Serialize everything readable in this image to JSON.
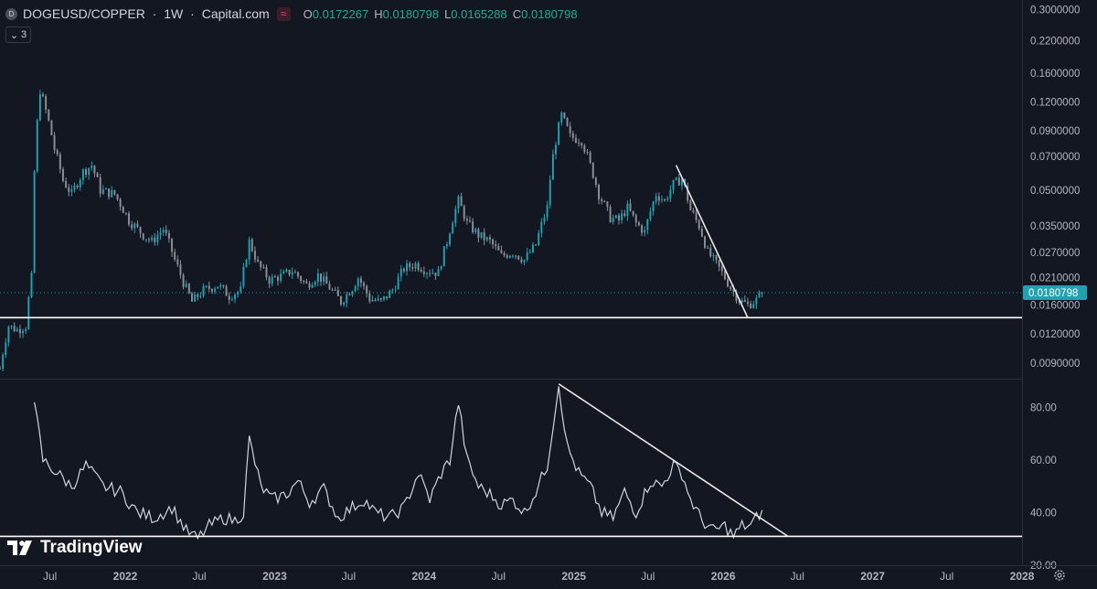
{
  "legend": {
    "symbol_icon": "D",
    "symbol": "DOGEUSD/COPPER",
    "interval": "1W",
    "source": "Capital.com",
    "indicator_icon": "wave-icon",
    "open_label": "O",
    "open": "0.0172267",
    "high_label": "H",
    "high": "0.0180798",
    "low_label": "L",
    "low": "0.0165288",
    "close_label": "C",
    "close": "0.0180798",
    "collapse_count": "3"
  },
  "logo_text": "TradingView",
  "colors": {
    "background": "#131722",
    "up": "#22a1b0",
    "down": "#8c8f99",
    "line": "#d1d4dc",
    "price_tag": "#22a1b0",
    "grid_text": "#b2b5be"
  },
  "chart_data": [
    {
      "type": "candlestick",
      "scale": "log",
      "ylim": [
        0.0077,
        0.33
      ],
      "y_ticks": [
        "0.3000000",
        "0.2200000",
        "0.1600000",
        "0.1200000",
        "0.0900000",
        "0.0700000",
        "0.0500000",
        "0.0350000",
        "0.0270000",
        "0.0210000",
        "0.0160000",
        "0.0120000",
        "0.0090000"
      ],
      "last_price_label": "0.0180798",
      "keypoints": [
        [
          "2021-03-01",
          0.0085
        ],
        [
          "2021-03-22",
          0.013
        ],
        [
          "2021-04-12",
          0.0125
        ],
        [
          "2021-05-03",
          0.013
        ],
        [
          "2021-05-17",
          0.021
        ],
        [
          "2021-05-24",
          0.06
        ],
        [
          "2021-06-07",
          0.135
        ],
        [
          "2021-06-21",
          0.11
        ],
        [
          "2021-07-12",
          0.075
        ],
        [
          "2021-08-02",
          0.055
        ],
        [
          "2021-08-23",
          0.048
        ],
        [
          "2021-09-20",
          0.06
        ],
        [
          "2021-10-11",
          0.064
        ],
        [
          "2021-11-01",
          0.05
        ],
        [
          "2021-12-06",
          0.048
        ],
        [
          "2022-01-10",
          0.037
        ],
        [
          "2022-02-14",
          0.032
        ],
        [
          "2022-03-07",
          0.03
        ],
        [
          "2022-04-04",
          0.034
        ],
        [
          "2022-05-02",
          0.025
        ],
        [
          "2022-05-23",
          0.02
        ],
        [
          "2022-06-13",
          0.0165
        ],
        [
          "2022-07-11",
          0.0185
        ],
        [
          "2022-08-15",
          0.0195
        ],
        [
          "2022-09-12",
          0.0175
        ],
        [
          "2022-10-10",
          0.0185
        ],
        [
          "2022-10-31",
          0.03
        ],
        [
          "2022-11-21",
          0.024
        ],
        [
          "2022-12-19",
          0.0205
        ],
        [
          "2023-01-23",
          0.0215
        ],
        [
          "2023-02-13",
          0.0225
        ],
        [
          "2023-03-20",
          0.0195
        ],
        [
          "2023-04-17",
          0.0215
        ],
        [
          "2023-05-15",
          0.019
        ],
        [
          "2023-06-12",
          0.0165
        ],
        [
          "2023-07-10",
          0.019
        ],
        [
          "2023-07-24",
          0.021
        ],
        [
          "2023-08-21",
          0.017
        ],
        [
          "2023-09-18",
          0.0165
        ],
        [
          "2023-10-16",
          0.0185
        ],
        [
          "2023-11-13",
          0.023
        ],
        [
          "2023-12-11",
          0.024
        ],
        [
          "2024-01-08",
          0.0225
        ],
        [
          "2024-02-05",
          0.022
        ],
        [
          "2024-02-26",
          0.03
        ],
        [
          "2024-03-25",
          0.045
        ],
        [
          "2024-04-15",
          0.036
        ],
        [
          "2024-05-13",
          0.032
        ],
        [
          "2024-06-10",
          0.03
        ],
        [
          "2024-07-08",
          0.026
        ],
        [
          "2024-08-05",
          0.027
        ],
        [
          "2024-09-02",
          0.025
        ],
        [
          "2024-09-30",
          0.029
        ],
        [
          "2024-10-28",
          0.042
        ],
        [
          "2024-11-11",
          0.07
        ],
        [
          "2024-12-02",
          0.105
        ],
        [
          "2024-12-23",
          0.085
        ],
        [
          "2025-01-20",
          0.082
        ],
        [
          "2025-02-10",
          0.064
        ],
        [
          "2025-03-03",
          0.048
        ],
        [
          "2025-03-31",
          0.038
        ],
        [
          "2025-04-21",
          0.037
        ],
        [
          "2025-05-12",
          0.042
        ],
        [
          "2025-06-02",
          0.036
        ],
        [
          "2025-06-23",
          0.033
        ],
        [
          "2025-07-21",
          0.048
        ],
        [
          "2025-08-11",
          0.045
        ],
        [
          "2025-09-01",
          0.053
        ],
        [
          "2025-09-22",
          0.056
        ],
        [
          "2025-10-13",
          0.041
        ],
        [
          "2025-11-03",
          0.035
        ],
        [
          "2025-11-24",
          0.027
        ],
        [
          "2025-12-22",
          0.023
        ],
        [
          "2026-01-19",
          0.019
        ],
        [
          "2026-02-09",
          0.0168
        ],
        [
          "2026-03-02",
          0.016
        ],
        [
          "2026-03-23",
          0.0168
        ],
        [
          "2026-04-06",
          0.0181
        ]
      ],
      "support_level": 0.0141,
      "trendline": [
        [
          "2025-09-08",
          0.064
        ],
        [
          "2026-03-02",
          0.0141
        ]
      ]
    },
    {
      "type": "line",
      "ylim": [
        20,
        91
      ],
      "y_ticks": [
        "80.00",
        "60.00",
        "40.00",
        "20.00"
      ],
      "keypoints": [
        [
          "2021-05-24",
          82
        ],
        [
          "2021-06-14",
          60
        ],
        [
          "2021-07-19",
          55
        ],
        [
          "2021-08-23",
          50
        ],
        [
          "2021-09-27",
          58
        ],
        [
          "2021-11-08",
          50
        ],
        [
          "2021-12-20",
          48
        ],
        [
          "2022-01-31",
          40
        ],
        [
          "2022-03-14",
          38
        ],
        [
          "2022-04-25",
          42
        ],
        [
          "2022-05-30",
          33
        ],
        [
          "2022-06-27",
          30
        ],
        [
          "2022-07-25",
          35
        ],
        [
          "2022-08-29",
          38
        ],
        [
          "2022-09-26",
          37
        ],
        [
          "2022-10-17",
          40
        ],
        [
          "2022-10-31",
          68
        ],
        [
          "2022-11-28",
          50
        ],
        [
          "2022-12-26",
          45
        ],
        [
          "2023-01-30",
          47
        ],
        [
          "2023-02-27",
          52
        ],
        [
          "2023-03-27",
          44
        ],
        [
          "2023-05-01",
          49
        ],
        [
          "2023-06-05",
          38
        ],
        [
          "2023-07-10",
          42
        ],
        [
          "2023-08-07",
          45
        ],
        [
          "2023-09-04",
          40
        ],
        [
          "2023-10-09",
          38
        ],
        [
          "2023-11-13",
          42
        ],
        [
          "2023-12-18",
          55
        ],
        [
          "2024-01-15",
          45
        ],
        [
          "2024-02-12",
          55
        ],
        [
          "2024-03-04",
          60
        ],
        [
          "2024-03-25",
          82
        ],
        [
          "2024-04-15",
          60
        ],
        [
          "2024-05-13",
          50
        ],
        [
          "2024-06-10",
          47
        ],
        [
          "2024-07-08",
          43
        ],
        [
          "2024-08-05",
          45
        ],
        [
          "2024-09-02",
          40
        ],
        [
          "2024-09-30",
          48
        ],
        [
          "2024-10-28",
          58
        ],
        [
          "2024-11-25",
          89
        ],
        [
          "2024-12-16",
          65
        ],
        [
          "2025-01-13",
          55
        ],
        [
          "2025-02-10",
          50
        ],
        [
          "2025-03-10",
          40
        ],
        [
          "2025-04-07",
          38
        ],
        [
          "2025-05-05",
          48
        ],
        [
          "2025-06-02",
          40
        ],
        [
          "2025-07-07",
          52
        ],
        [
          "2025-08-04",
          50
        ],
        [
          "2025-09-01",
          58
        ],
        [
          "2025-09-22",
          55
        ],
        [
          "2025-10-13",
          45
        ],
        [
          "2025-11-10",
          37
        ],
        [
          "2025-12-08",
          33
        ],
        [
          "2026-01-05",
          35
        ],
        [
          "2026-01-26",
          31
        ],
        [
          "2026-02-16",
          35
        ],
        [
          "2026-03-09",
          35
        ],
        [
          "2026-04-06",
          41
        ]
      ],
      "support_level": 31,
      "trendline": [
        [
          "2024-11-25",
          89
        ],
        [
          "2026-06-08",
          31
        ]
      ]
    }
  ],
  "time_axis": {
    "start": "2021-03-01",
    "end": "2028-01-01",
    "ticks": [
      {
        "date": "2021-07-01",
        "label": "Jul",
        "major": false
      },
      {
        "date": "2022-01-01",
        "label": "2022",
        "major": true
      },
      {
        "date": "2022-07-01",
        "label": "Jul",
        "major": false
      },
      {
        "date": "2023-01-01",
        "label": "2023",
        "major": true
      },
      {
        "date": "2023-07-01",
        "label": "Jul",
        "major": false
      },
      {
        "date": "2024-01-01",
        "label": "2024",
        "major": true
      },
      {
        "date": "2024-07-01",
        "label": "Jul",
        "major": false
      },
      {
        "date": "2025-01-01",
        "label": "2025",
        "major": true
      },
      {
        "date": "2025-07-01",
        "label": "Jul",
        "major": false
      },
      {
        "date": "2026-01-01",
        "label": "2026",
        "major": true
      },
      {
        "date": "2026-07-01",
        "label": "Jul",
        "major": false
      },
      {
        "date": "2027-01-01",
        "label": "2027",
        "major": true
      },
      {
        "date": "2027-07-01",
        "label": "Jul",
        "major": false
      },
      {
        "date": "2028-01-01",
        "label": "2028",
        "major": true
      }
    ]
  }
}
